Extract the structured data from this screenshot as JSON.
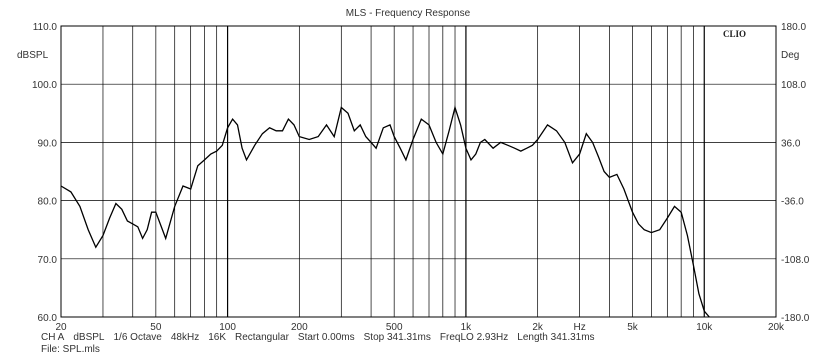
{
  "chart_data": {
    "type": "line",
    "title": "MLS - Frequency Response",
    "brand": "CLIO",
    "ylabel_left": "dBSPL",
    "ylabel_right": "Deg",
    "xscale": "log",
    "xlim": [
      20,
      20000
    ],
    "ylim": [
      60,
      110
    ],
    "ylim_right": [
      -180,
      180
    ],
    "grid": true,
    "x_ticks": [
      {
        "value": 20,
        "label": "20"
      },
      {
        "value": 50,
        "label": "50"
      },
      {
        "value": 100,
        "label": "100"
      },
      {
        "value": 200,
        "label": "200"
      },
      {
        "value": 500,
        "label": "500"
      },
      {
        "value": 1000,
        "label": "1k"
      },
      {
        "value": 2000,
        "label": "2k"
      },
      {
        "value": 3000,
        "label": "Hz"
      },
      {
        "value": 5000,
        "label": "5k"
      },
      {
        "value": 10000,
        "label": "10k"
      },
      {
        "value": 20000,
        "label": "20k"
      }
    ],
    "y_ticks_left": [
      {
        "value": 110,
        "label": "110.0"
      },
      {
        "value": 100,
        "label": "100.0"
      },
      {
        "value": 90,
        "label": "90.0"
      },
      {
        "value": 80,
        "label": "80.0"
      },
      {
        "value": 70,
        "label": "70.0"
      },
      {
        "value": 60,
        "label": "60.0"
      }
    ],
    "y_ticks_right": [
      {
        "value": 180,
        "label": "180.0"
      },
      {
        "value": 108,
        "label": "108.0"
      },
      {
        "value": 36,
        "label": "36.0"
      },
      {
        "value": -36,
        "label": "-36.0"
      },
      {
        "value": -108,
        "label": "-108.0"
      },
      {
        "value": -180,
        "label": "-180.0"
      }
    ],
    "series": [
      {
        "color": "#000000",
        "x": [
          20,
          22,
          24,
          26,
          28,
          30,
          32,
          34,
          36,
          38,
          40,
          42,
          44,
          46,
          48,
          50,
          55,
          60,
          65,
          70,
          75,
          80,
          85,
          90,
          95,
          100,
          105,
          110,
          115,
          120,
          130,
          140,
          150,
          160,
          170,
          180,
          190,
          200,
          220,
          240,
          260,
          280,
          300,
          320,
          340,
          360,
          380,
          400,
          420,
          450,
          480,
          500,
          530,
          560,
          600,
          650,
          700,
          750,
          800,
          850,
          900,
          950,
          1000,
          1050,
          1100,
          1150,
          1200,
          1300,
          1400,
          1500,
          1600,
          1700,
          1800,
          1900,
          2000,
          2200,
          2400,
          2600,
          2800,
          3000,
          3200,
          3400,
          3600,
          3800,
          4000,
          4300,
          4600,
          5000,
          5300,
          5600,
          6000,
          6500,
          7000,
          7500,
          8000,
          8500,
          9000,
          9500,
          10000,
          10500
        ],
        "y": [
          82.5,
          81.5,
          79,
          75,
          72,
          74,
          77,
          79.5,
          78.5,
          76.5,
          76,
          75.5,
          73.5,
          75,
          78,
          78,
          73.5,
          79,
          82.5,
          82,
          86,
          87,
          88,
          88.5,
          89.5,
          92.5,
          94,
          93,
          89,
          87,
          89.5,
          91.5,
          92.5,
          92,
          92,
          94,
          93,
          91,
          90.5,
          91,
          93,
          91,
          96,
          95,
          92,
          93,
          91,
          90,
          89,
          92.5,
          93,
          91,
          89,
          87,
          90.5,
          94,
          93,
          90,
          88,
          92,
          96,
          93,
          89,
          87,
          88,
          90,
          90.5,
          89,
          90,
          89.5,
          89,
          88.5,
          89,
          89.5,
          90.5,
          93,
          92,
          90,
          86.5,
          88,
          91.5,
          90,
          87.5,
          85,
          84,
          84.5,
          82,
          78,
          76,
          75,
          74.5,
          75,
          77,
          79,
          78,
          74,
          69,
          64,
          61,
          60
        ]
      }
    ]
  },
  "footer": {
    "items": [
      "CH A",
      "dBSPL",
      "1/6 Octave",
      "48kHz",
      "16K",
      "Rectangular",
      "Start 0.00ms",
      "Stop 341.31ms",
      "FreqLO 2.93Hz",
      "Length 341.31ms"
    ],
    "file": "File: SPL.mls"
  }
}
